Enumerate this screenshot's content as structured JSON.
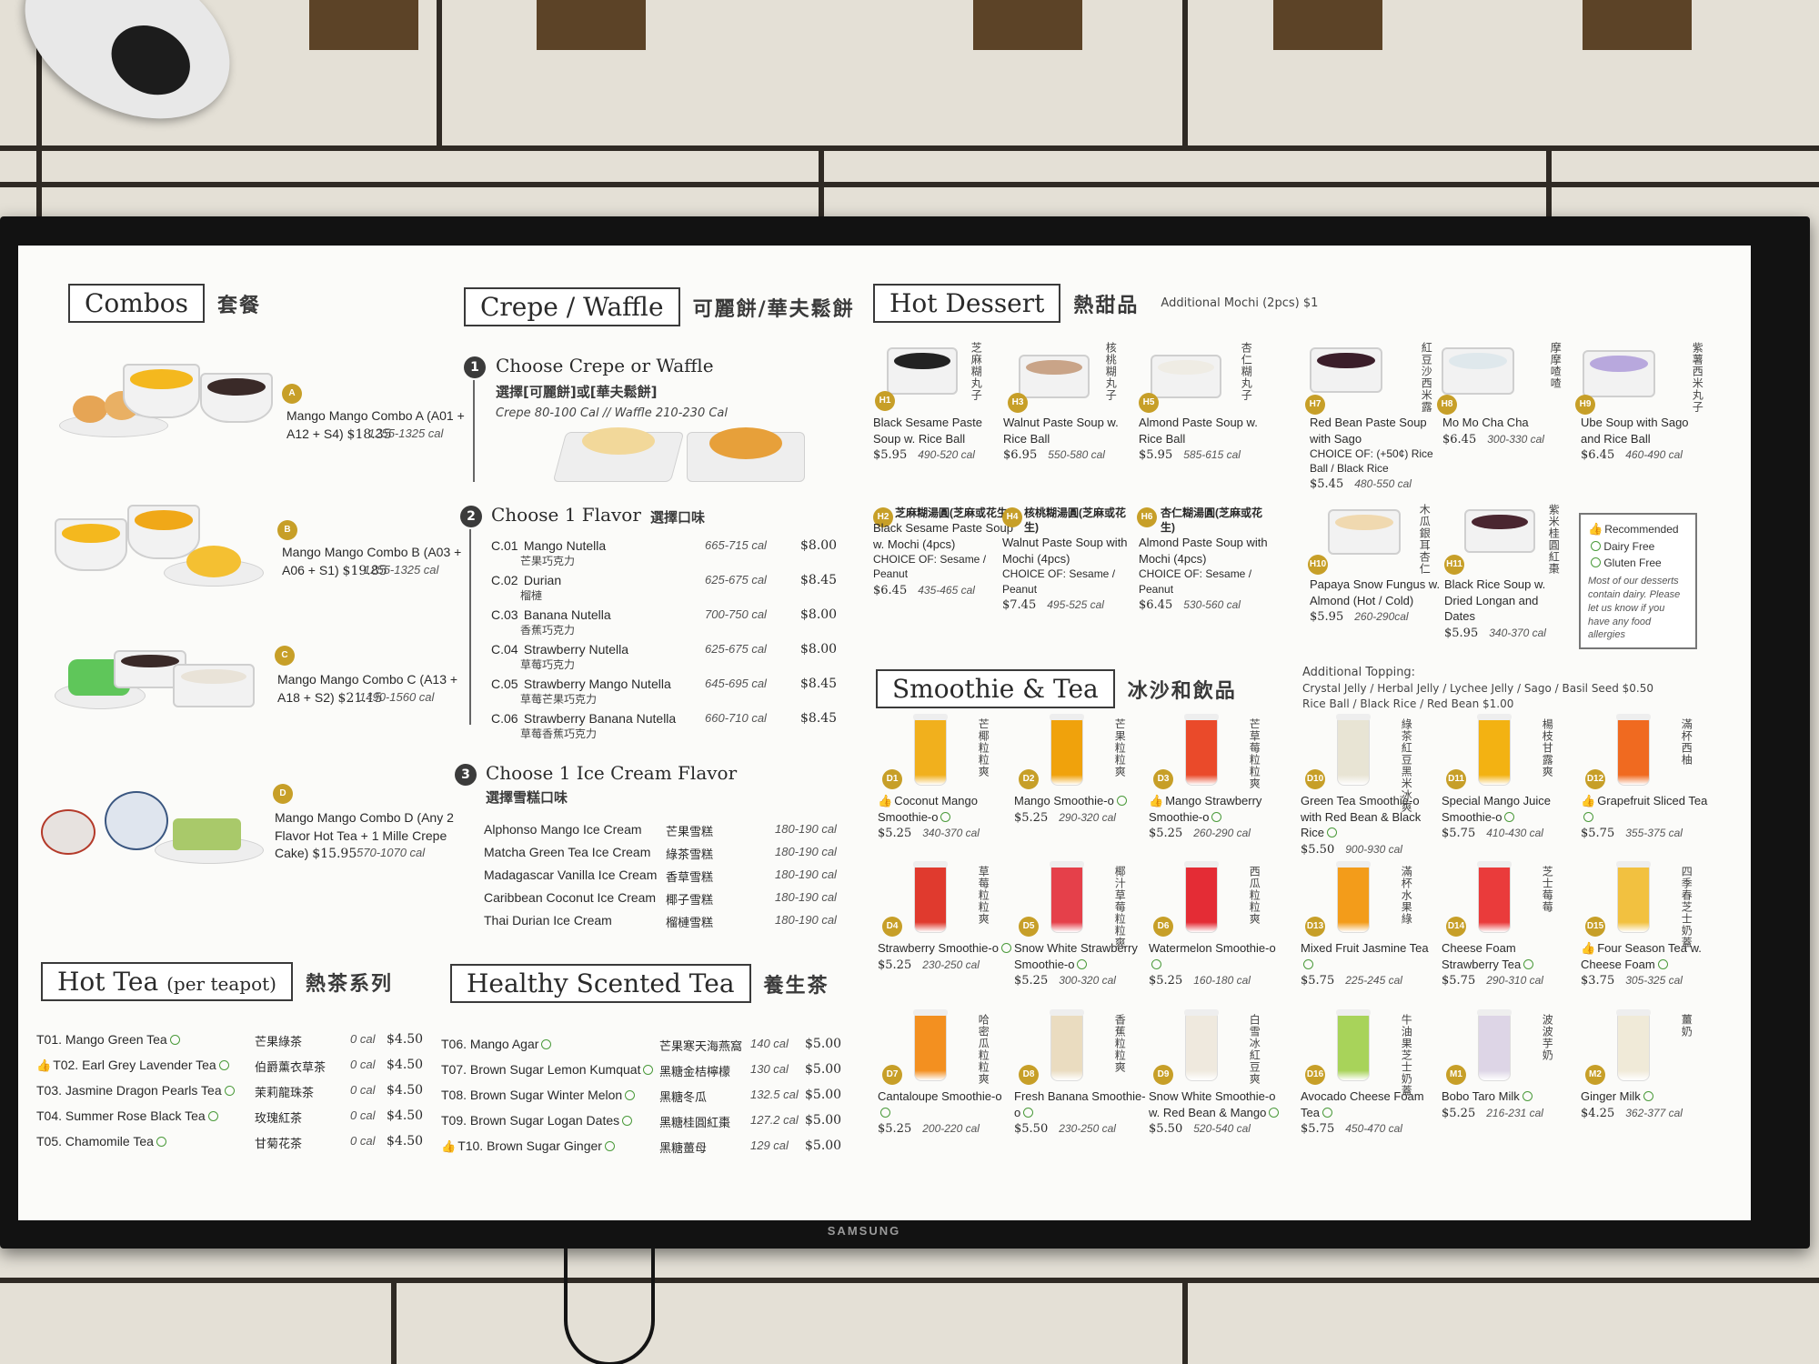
{
  "device_brand": "SAMSUNG",
  "colors": {
    "accent_gold": "#c79f28",
    "text": "#2a2a2a",
    "screen_bg": "#fbfbf9"
  },
  "combos": {
    "title": "Combos",
    "title_zh": "套餐",
    "items": [
      {
        "letter": "A",
        "name": "Mango Mango Combo A",
        "detail": "(A01 + A12 + S4)",
        "price": "$18.35",
        "cal": "1255-1325 cal"
      },
      {
        "letter": "B",
        "name": "Mango Mango Combo B",
        "detail": "(A03 + A06 + S1)",
        "price": "$19.85",
        "cal": "1255-1325 cal"
      },
      {
        "letter": "C",
        "name": "Mango Mango Combo C",
        "detail": "(A13 + A18 + S2)",
        "price": "$21.15",
        "cal": "1490-1560 cal"
      },
      {
        "letter": "D",
        "name": "Mango Mango Combo D",
        "detail": "(Any 2 Flavor Hot Tea +",
        "detail2": "1 Mille Crepe Cake)",
        "price": "$15.95",
        "cal": "570-1070 cal"
      }
    ]
  },
  "crepe": {
    "title": "Crepe / Waffle",
    "title_zh": "可麗餅/華夫鬆餅",
    "step1": {
      "num": "1",
      "title": "Choose Crepe or Waffle",
      "zh": "選擇[可麗餅]或[華夫鬆餅]",
      "note": "Crepe 80-100 Cal  //  Waffle 210-230 Cal"
    },
    "step2": {
      "num": "2",
      "title": "Choose 1 Flavor",
      "zh": "選擇口味"
    },
    "flavors": [
      {
        "code": "C.01",
        "name": "Mango Nutella",
        "zh": "芒果巧克力",
        "cal": "665-715 cal",
        "price": "$8.00"
      },
      {
        "code": "C.02",
        "name": "Durian",
        "zh": "榴槤",
        "cal": "625-675 cal",
        "price": "$8.45"
      },
      {
        "code": "C.03",
        "name": "Banana Nutella",
        "zh": "香蕉巧克力",
        "cal": "700-750 cal",
        "price": "$8.00"
      },
      {
        "code": "C.04",
        "name": "Strawberry Nutella",
        "zh": "草莓巧克力",
        "cal": "625-675 cal",
        "price": "$8.00"
      },
      {
        "code": "C.05",
        "name": "Strawberry Mango Nutella",
        "zh": "草莓芒果巧克力",
        "cal": "645-695 cal",
        "price": "$8.45"
      },
      {
        "code": "C.06",
        "name": "Strawberry Banana Nutella",
        "zh": "草莓香蕉巧克力",
        "cal": "660-710 cal",
        "price": "$8.45"
      }
    ],
    "step3": {
      "num": "3",
      "title": "Choose 1 Ice Cream Flavor",
      "zh": "選擇雪糕口味"
    },
    "ice_creams": [
      {
        "name": "Alphonso Mango Ice Cream",
        "zh": "芒果雪糕",
        "cal": "180-190 cal"
      },
      {
        "name": "Matcha Green Tea Ice Cream",
        "zh": "綠茶雪糕",
        "cal": "180-190 cal"
      },
      {
        "name": "Madagascar Vanilla Ice Cream",
        "zh": "香草雪糕",
        "cal": "180-190 cal"
      },
      {
        "name": "Caribbean Coconut Ice Cream",
        "zh": "椰子雪糕",
        "cal": "180-190 cal"
      },
      {
        "name": "Thai Durian Ice Cream",
        "zh": "榴槤雪糕",
        "cal": "180-190 cal"
      }
    ]
  },
  "hot_dessert": {
    "title": "Hot Dessert",
    "title_zh": "熱甜品",
    "note": "Additional Mochi (2pcs) $1",
    "items": [
      {
        "code": "H1",
        "name": "Black Sesame Paste Soup w. Rice Ball",
        "zh": "芝麻糊丸子",
        "price": "$5.95",
        "cal": "490-520 cal"
      },
      {
        "code": "H3",
        "name": "Walnut Paste Soup w. Rice Ball",
        "zh": "核桃糊丸子",
        "price": "$6.95",
        "cal": "550-580 cal"
      },
      {
        "code": "H5",
        "name": "Almond Paste Soup w. Rice Ball",
        "zh": "杏仁糊丸子",
        "price": "$5.95",
        "cal": "585-615 cal"
      },
      {
        "code": "H7",
        "name": "Red Bean Paste Soup with Sago",
        "zh": "紅豆沙西米露",
        "extra": "CHOICE OF: (+50¢) Rice Ball / Black Rice",
        "price": "$5.45",
        "cal": "480-550 cal"
      },
      {
        "code": "H8",
        "name": "Mo Mo Cha Cha",
        "zh": "摩摩喳喳",
        "price": "$6.45",
        "cal": "300-330 cal"
      },
      {
        "code": "H9",
        "name": "Ube Soup with Sago and Rice Ball",
        "zh": "紫薯西米丸子",
        "price": "$6.45",
        "cal": "460-490 cal"
      },
      {
        "code": "H2",
        "name": "Black Sesame Paste Soup w. Mochi (4pcs)",
        "zh": "芝麻糊湯圓(芝麻或花生)",
        "extra": "CHOICE OF: Sesame / Peanut",
        "price": "$6.45",
        "cal": "435-465 cal"
      },
      {
        "code": "H4",
        "name": "Walnut Paste Soup with Mochi (4pcs)",
        "zh": "核桃糊湯圓(芝麻或花生)",
        "extra": "CHOICE OF: Sesame / Peanut",
        "price": "$7.45",
        "cal": "495-525 cal"
      },
      {
        "code": "H6",
        "name": "Almond Paste Soup with Mochi (4pcs)",
        "zh": "杏仁糊湯圓(芝麻或花生)",
        "extra": "CHOICE OF: Sesame / Peanut",
        "price": "$6.45",
        "cal": "530-560 cal"
      },
      {
        "code": "H10",
        "name": "Papaya Snow Fungus w. Almond (Hot / Cold)",
        "zh": "木瓜銀耳杏仁",
        "price": "$5.95",
        "cal": "260-290cal"
      },
      {
        "code": "H11",
        "name": "Black Rice Soup w. Dried Longan and Dates",
        "zh": "紫米桂圓紅棗",
        "price": "$5.95",
        "cal": "340-370 cal"
      }
    ],
    "legend": {
      "recommended": "Recommended",
      "dairy_free": "Dairy Free",
      "gluten_free": "Gluten Free",
      "allergy": "Most of our desserts contain dairy. Please let us know if you have any food allergies"
    }
  },
  "smoothie": {
    "title": "Smoothie & Tea",
    "title_zh": "冰沙和飲品",
    "topping_title": "Additional Topping:",
    "topping_line1": "Crystal Jelly / Herbal Jelly / Lychee Jelly / Sago / Basil Seed $0.50",
    "topping_line2": "Rice Ball / Black Rice / Red Bean $1.00",
    "items": [
      {
        "code": "D1",
        "name": "Coconut Mango Smoothie-o",
        "zh": "芒椰粒粒爽",
        "price": "$5.25",
        "cal": "340-370 cal",
        "color": "#f1b01d"
      },
      {
        "code": "D2",
        "name": "Mango Smoothie-o",
        "zh": "芒果粒粒爽",
        "price": "$5.25",
        "cal": "290-320 cal",
        "color": "#f0a20c"
      },
      {
        "code": "D3",
        "name": "Mango Strawberry Smoothie-o",
        "zh": "芒草莓粒粒爽",
        "price": "$5.25",
        "cal": "260-290 cal",
        "color": "#ea4a2a"
      },
      {
        "code": "D10",
        "name": "Green Tea Smoothie-o with Red Bean & Black Rice",
        "zh": "綠茶紅豆黑米冰爽",
        "price": "$5.50",
        "cal": "900-930 cal",
        "color": "#e8e4d4"
      },
      {
        "code": "D11",
        "name": "Special Mango Juice Smoothie-o",
        "zh": "楊枝甘露爽",
        "price": "$5.75",
        "cal": "410-430 cal",
        "color": "#f3b212"
      },
      {
        "code": "D12",
        "name": "Grapefruit Sliced Tea",
        "zh": "滿杯西柚",
        "price": "$5.75",
        "cal": "355-375 cal",
        "color": "#f06a20"
      },
      {
        "code": "D4",
        "name": "Strawberry Smoothie-o",
        "zh": "草莓粒粒爽",
        "price": "$5.25",
        "cal": "230-250 cal",
        "color": "#e03a2e"
      },
      {
        "code": "D5",
        "name": "Snow White Strawberry Smoothie-o",
        "zh": "椰汁草莓粒粒爽",
        "price": "$5.25",
        "cal": "300-320 cal",
        "color": "#e5404a"
      },
      {
        "code": "D6",
        "name": "Watermelon Smoothie-o",
        "zh": "西瓜粒粒爽",
        "price": "$5.25",
        "cal": "160-180 cal",
        "color": "#e42c35"
      },
      {
        "code": "D13",
        "name": "Mixed Fruit Jasmine Tea",
        "zh": "滿杯水果綠",
        "price": "$5.75",
        "cal": "225-245 cal",
        "color": "#f39c1a"
      },
      {
        "code": "D14",
        "name": "Cheese Foam Strawberry Tea",
        "zh": "芝士莓莓",
        "price": "$5.75",
        "cal": "290-310 cal",
        "color": "#ea3b3b"
      },
      {
        "code": "D15",
        "name": "Four Season Tea w. Cheese Foam",
        "zh": "四季春芝士奶蓋",
        "price": "$3.75",
        "cal": "305-325 cal",
        "color": "#f2c140"
      },
      {
        "code": "D7",
        "name": "Cantaloupe Smoothie-o",
        "zh": "哈密瓜粒粒爽",
        "price": "$5.25",
        "cal": "200-220 cal",
        "color": "#f39020"
      },
      {
        "code": "D8",
        "name": "Fresh Banana Smoothie-o",
        "zh": "香蕉粒粒爽",
        "price": "$5.50",
        "cal": "230-250 cal",
        "color": "#eadcc0"
      },
      {
        "code": "D9",
        "name": "Snow White Smoothie-o w. Red Bean & Mango",
        "zh": "白雪冰紅豆爽",
        "price": "$5.50",
        "cal": "520-540 cal",
        "color": "#efe9de"
      },
      {
        "code": "D16",
        "name": "Avocado Cheese Foam Tea",
        "zh": "牛油果芝士奶蓋",
        "price": "$5.75",
        "cal": "450-470 cal",
        "color": "#a8d35a"
      },
      {
        "code": "M1",
        "name": "Bobo Taro Milk",
        "zh": "波波芋奶",
        "price": "$5.25",
        "cal": "216-231 cal",
        "color": "#ddd5e6"
      },
      {
        "code": "M2",
        "name": "Ginger Milk",
        "zh": "薑奶",
        "price": "$4.25",
        "cal": "362-377 cal",
        "color": "#f0ead8"
      }
    ]
  },
  "hot_tea": {
    "title": "Hot Tea",
    "title_small": "(per teapot)",
    "title_zh": "熱茶系列",
    "items": [
      {
        "code": "T01.",
        "name": "Mango Green Tea",
        "zh": "芒果綠茶",
        "cal": "0 cal",
        "price": "$4.50"
      },
      {
        "code": "T02.",
        "name": "Earl Grey Lavender Tea",
        "zh": "伯爵薰衣草茶",
        "cal": "0 cal",
        "price": "$4.50"
      },
      {
        "code": "T03.",
        "name": "Jasmine Dragon Pearls Tea",
        "zh": "茉莉龍珠茶",
        "cal": "0 cal",
        "price": "$4.50"
      },
      {
        "code": "T04.",
        "name": "Summer Rose Black Tea",
        "zh": "玫瑰紅茶",
        "cal": "0 cal",
        "price": "$4.50"
      },
      {
        "code": "T05.",
        "name": "Chamomile Tea",
        "zh": "甘菊花茶",
        "cal": "0 cal",
        "price": "$4.50"
      }
    ]
  },
  "scented_tea": {
    "title": "Healthy Scented Tea",
    "title_zh": "養生茶",
    "items": [
      {
        "code": "T06.",
        "name": "Mango Agar",
        "zh": "芒果寒天海燕窩",
        "cal": "140 cal",
        "price": "$5.00"
      },
      {
        "code": "T07.",
        "name": "Brown Sugar Lemon Kumquat",
        "zh": "黑糖金桔檸檬",
        "cal": "130 cal",
        "price": "$5.00"
      },
      {
        "code": "T08.",
        "name": "Brown Sugar Winter Melon",
        "zh": "黑糖冬瓜",
        "cal": "132.5 cal",
        "price": "$5.00"
      },
      {
        "code": "T09.",
        "name": "Brown Sugar Logan Dates",
        "zh": "黑糖桂圓紅棗",
        "cal": "127.2 cal",
        "price": "$5.00"
      },
      {
        "code": "T10.",
        "name": "Brown Sugar Ginger",
        "zh": "黑糖薑母",
        "cal": "129 cal",
        "price": "$5.00"
      }
    ]
  }
}
